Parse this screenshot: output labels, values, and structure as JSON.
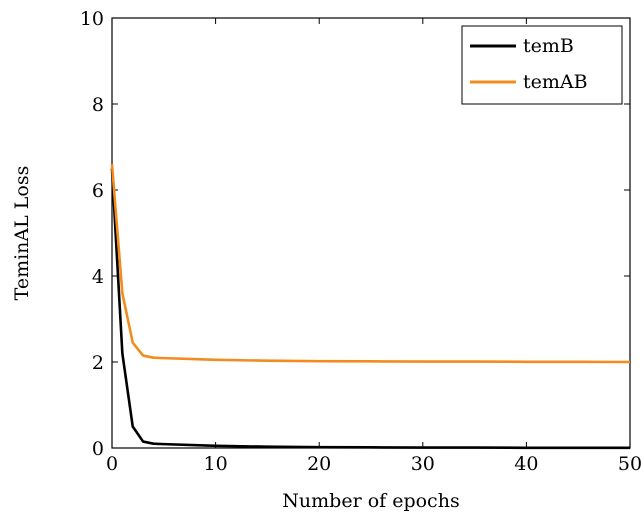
{
  "chart_data": {
    "type": "line",
    "xlabel": "Number of epochs",
    "ylabel": "TeminAL Loss",
    "xlim": [
      0,
      50
    ],
    "ylim": [
      0,
      10
    ],
    "xticks": [
      0,
      10,
      20,
      30,
      40,
      50
    ],
    "yticks": [
      0,
      2,
      4,
      6,
      8,
      10
    ],
    "xtick_labels": [
      "0",
      "10",
      "20",
      "30",
      "40",
      "50"
    ],
    "ytick_labels": [
      "0",
      "2",
      "4",
      "6",
      "8",
      "10"
    ],
    "grid": false,
    "legend_position": "top-right",
    "series": [
      {
        "name": "temB",
        "color": "#000000",
        "x": [
          0,
          1,
          2,
          3,
          4,
          5,
          10,
          15,
          20,
          25,
          30,
          35,
          40,
          45,
          50
        ],
        "y": [
          6.5,
          2.2,
          0.5,
          0.15,
          0.1,
          0.09,
          0.05,
          0.03,
          0.02,
          0.015,
          0.01,
          0.01,
          0.005,
          0.005,
          0.005
        ]
      },
      {
        "name": "temAB",
        "color": "#F28C1E",
        "x": [
          0,
          1,
          2,
          3,
          4,
          5,
          10,
          15,
          20,
          25,
          30,
          35,
          40,
          45,
          50
        ],
        "y": [
          6.6,
          3.6,
          2.45,
          2.15,
          2.1,
          2.09,
          2.05,
          2.03,
          2.02,
          2.015,
          2.01,
          2.01,
          2.005,
          2.005,
          2.0
        ]
      }
    ]
  }
}
